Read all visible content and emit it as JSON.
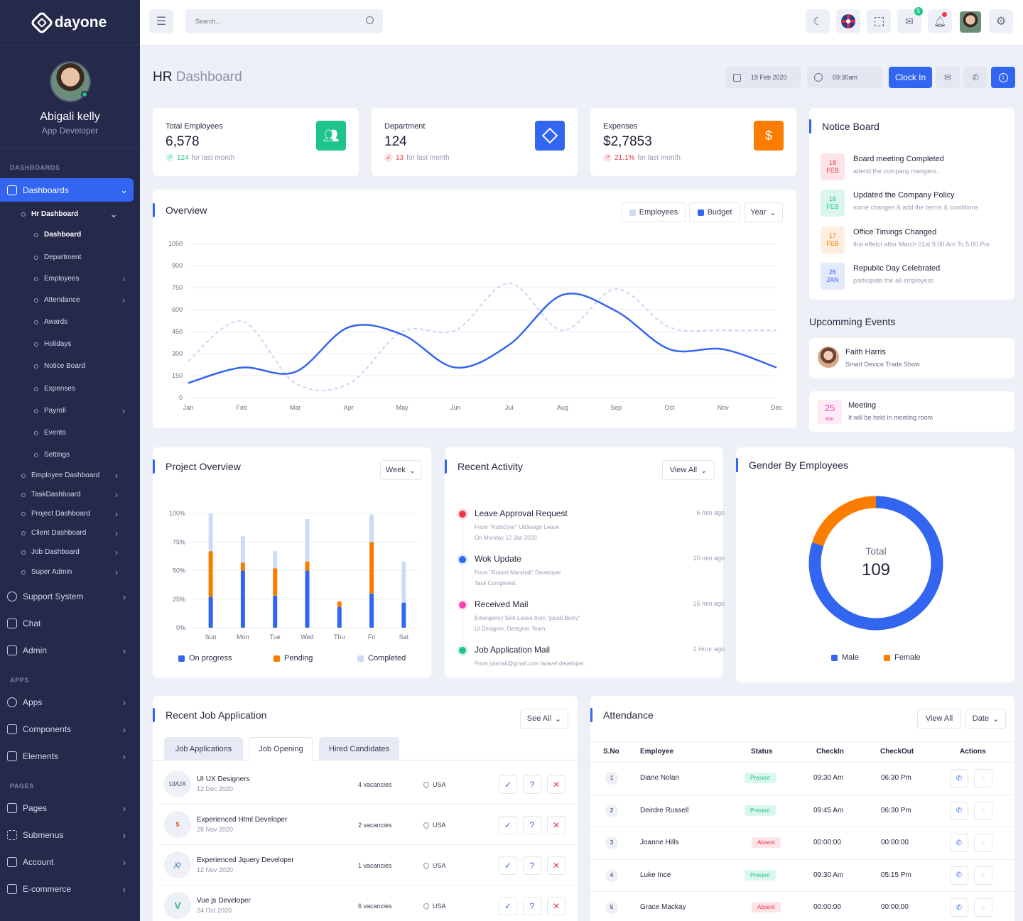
{
  "app": {
    "logo_text": "dayone"
  },
  "profile": {
    "name": "Abigali kelly",
    "role": "App Developer"
  },
  "sidebar": {
    "section_dashboards": "DASHBOARDS",
    "dashboards": "Dashboards",
    "hr_dashboard": "Hr Dashboard",
    "hr_items": [
      "Dashboard",
      "Department",
      "Employees",
      "Attendance",
      "Awards",
      "Holidays",
      "Notice Board",
      "Expenses",
      "Payroll",
      "Events",
      "Settings"
    ],
    "dash_items": [
      "Employee Dashboard",
      "TaskDashboard",
      "Project Dashboard",
      "Client Dashboard",
      "Job Dashboard",
      "Super Admin"
    ],
    "main_items": [
      "Support System",
      "Chat",
      "Admin"
    ],
    "section_apps": "APPS",
    "apps_items": [
      "Apps",
      "Components",
      "Elements"
    ],
    "section_pages": "PAGES",
    "pages_items": [
      "Pages",
      "Submenus",
      "Account",
      "E-commerce"
    ]
  },
  "topbar": {
    "search_placeholder": "Search...",
    "mail_badge": "5"
  },
  "page": {
    "title_strong": "HR",
    "title_light": "Dashboard",
    "date": "19 Feb 2020",
    "time": "09:30am",
    "clock_in": "Clock In"
  },
  "stats": [
    {
      "label": "Total Employees",
      "value": "6,578",
      "change": "124",
      "period": "for last month",
      "trend": "up",
      "color": "#1ec48c",
      "icon": "users-icon"
    },
    {
      "label": "Department",
      "value": "124",
      "change": "13",
      "period": "for last month",
      "trend": "down",
      "color": "#3366f0",
      "icon": "cube-icon"
    },
    {
      "label": "Expenses",
      "value": "$2,7853",
      "change": "21.1%",
      "period": "for last month",
      "trend": "down",
      "color": "#fb7d00",
      "icon": "dollar-icon"
    }
  ],
  "overview": {
    "title": "Overview",
    "legend_employees": "Employees",
    "legend_budget": "Budget",
    "period": "Year"
  },
  "notice_board": {
    "title": "Notice Board",
    "items": [
      {
        "day": "18",
        "mon": "FEB",
        "title": "Board meeting Completed",
        "desc": "attend the company mangers...",
        "color": "#f0364a",
        "bg": "#fde4e7"
      },
      {
        "day": "16",
        "mon": "FEB",
        "title": "Updated the Company Policy",
        "desc": "some changes & add the terms & conditions",
        "color": "#1ec48c",
        "bg": "#dbf6ec"
      },
      {
        "day": "17",
        "mon": "FEB",
        "title": "Office Timings Changed",
        "desc": "this effetct after March 01st 9:00 Am To 5:00 Pm",
        "color": "#fb7d00",
        "bg": "#fdeede"
      },
      {
        "day": "26",
        "mon": "JAN",
        "title": "Republic Day Celebrated",
        "desc": "participate the all employess",
        "color": "#3366f0",
        "bg": "#e3eafd"
      }
    ]
  },
  "events": {
    "title": "Upcomming Events",
    "first": {
      "name": "Faith Harris",
      "desc": "Smart Device Trade Show"
    },
    "second": {
      "day": "25",
      "mon": "Mar",
      "name": "Meeting",
      "desc": "It will be held in meeting room"
    }
  },
  "project_overview": {
    "title": "Project Overview",
    "period": "Week",
    "legend": [
      "On progress",
      "Pending",
      "Completed"
    ]
  },
  "recent_activity": {
    "title": "Recent Activity",
    "view_all": "View All",
    "items": [
      {
        "title": "Leave Approval Request",
        "line1": "From \"RuthDyer\" UiDesign Leave",
        "line2": "On Monday 12 Jan 2020.",
        "time": "6 min ago",
        "color": "#f0364a"
      },
      {
        "title": "Wok Update",
        "line1": "From \"Robert Marshall\" Developer",
        "line2": "Task Completed.",
        "time": "10 min ago",
        "color": "#3366f0"
      },
      {
        "title": "Received Mail",
        "line1": "Emergency Sick Leave from \"jacob Berry\"",
        "line2": "Ui Designer, Designer Team.",
        "time": "15 min ago",
        "color": "#f542b0"
      },
      {
        "title": "Job Application Mail",
        "line1": "From jobmail@gmail.com laravel developer.",
        "line2": "",
        "time": "1 Hour ago",
        "color": "#1ec48c"
      }
    ]
  },
  "gender": {
    "title": "Gender By Employees",
    "total_label": "Total",
    "total": "109",
    "male_label": "Male",
    "female_label": "Female",
    "male_share": 0.8,
    "female_share": 0.2
  },
  "jobs": {
    "title": "Recent Job Application",
    "see_all": "See All",
    "tabs": [
      "Job Applications",
      "Job Opening",
      "Hired Candidates"
    ],
    "items": [
      {
        "logo": "UI/UX",
        "title": "UI UX Designers",
        "date": "12 Dec 2020",
        "vacancies": "4 vacancies",
        "location": "USA"
      },
      {
        "logo": "5",
        "title": "Experienced Html Developer",
        "date": "28 Nov 2020",
        "vacancies": "2 vacancies",
        "location": "USA"
      },
      {
        "logo": "jQ",
        "title": "Experienced Jquery Developer",
        "date": "12 Nov 2020",
        "vacancies": "1 vacancies",
        "location": "USA"
      },
      {
        "logo": "V",
        "title": "Vue js Developer",
        "date": "24 Oct 2020",
        "vacancies": "6 vacancies",
        "location": "USA"
      }
    ]
  },
  "attendance": {
    "title": "Attendance",
    "view_all": "View All",
    "date": "Date",
    "headers": [
      "S.No",
      "Employee",
      "Status",
      "CheckIn",
      "CheckOut",
      "Actions"
    ],
    "rows": [
      {
        "no": "1",
        "name": "Diane Nolan",
        "status": "Present",
        "in": "09:30 Am",
        "out": "06:30 Pm"
      },
      {
        "no": "2",
        "name": "Deirdre Russell",
        "status": "Present",
        "in": "09:45 Am",
        "out": "06:30 Pm"
      },
      {
        "no": "3",
        "name": "Joanne Hills",
        "status": "Absent",
        "in": "00:00:00",
        "out": "00:00:00"
      },
      {
        "no": "4",
        "name": "Luke Ince",
        "status": "Present",
        "in": "09:30 Am",
        "out": "05:15 Pm"
      },
      {
        "no": "5",
        "name": "Grace Mackay",
        "status": "Absent",
        "in": "00:00:00",
        "out": "00:00:00"
      }
    ]
  },
  "chart_data": [
    {
      "type": "line",
      "x": [
        "Jan",
        "Feb",
        "Mar",
        "Apr",
        "May",
        "Jun",
        "Jul",
        "Aug",
        "Sep",
        "Oct",
        "Nov",
        "Dec"
      ],
      "ylim": [
        0,
        1050
      ],
      "yticks": [
        0,
        150,
        300,
        450,
        600,
        750,
        900,
        1050
      ],
      "series": [
        {
          "name": "Employees",
          "values": [
            250,
            520,
            100,
            95,
            450,
            460,
            780,
            460,
            740,
            480,
            460,
            460
          ]
        },
        {
          "name": "Budget",
          "values": [
            100,
            205,
            175,
            480,
            430,
            205,
            360,
            700,
            590,
            330,
            330,
            205
          ]
        }
      ]
    },
    {
      "type": "bar",
      "categories": [
        "Sun",
        "Mon",
        "Tue",
        "Wed",
        "Thu",
        "Fri",
        "Sat"
      ],
      "ylim": [
        0,
        100
      ],
      "yticks": [
        "0%",
        "25%",
        "50%",
        "75%",
        "100%"
      ],
      "series": [
        {
          "name": "On progress",
          "values": [
            27,
            50,
            28,
            50,
            18,
            30,
            22
          ]
        },
        {
          "name": "Pending",
          "values": [
            40,
            7,
            24,
            8,
            5,
            45,
            0
          ]
        },
        {
          "name": "Completed",
          "values": [
            33,
            23,
            15,
            37,
            0,
            24,
            36
          ]
        }
      ]
    },
    {
      "type": "pie",
      "categories": [
        "Male",
        "Female"
      ],
      "values": [
        80,
        20
      ]
    }
  ]
}
